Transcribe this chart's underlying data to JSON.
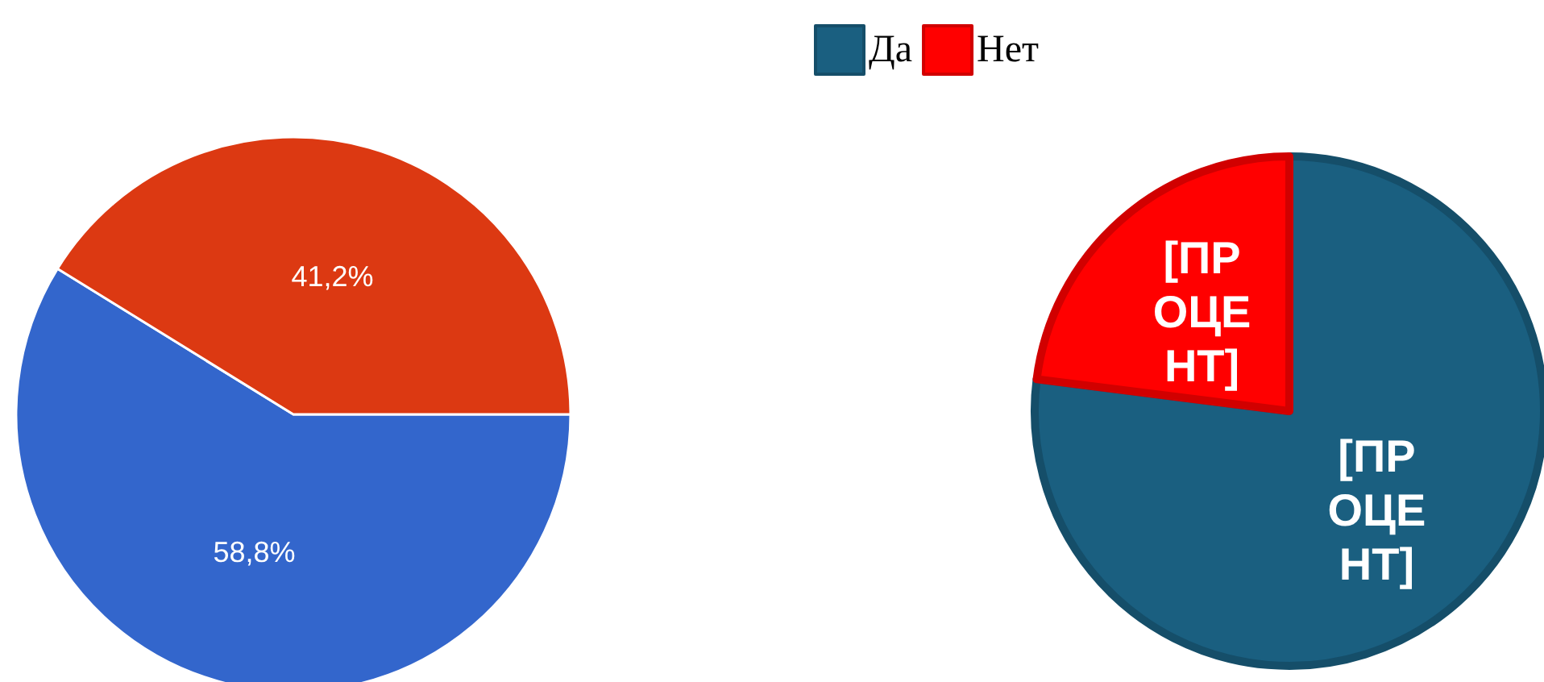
{
  "chart_data": [
    {
      "type": "pie",
      "categories": [
        null,
        null
      ],
      "values": [
        58.8,
        41.2
      ],
      "colors": [
        "#3366cc",
        "#dc3912"
      ],
      "value_labels": [
        "58,8%",
        "41,2%"
      ],
      "legend": false
    },
    {
      "type": "pie",
      "categories": [
        "Да",
        "Нет"
      ],
      "values": [
        77,
        23
      ],
      "colors": [
        "#1a5f80",
        "#ff0000"
      ],
      "value_labels": [
        "[ПРОЦЕНТ]",
        "[ПРОЦЕНТ]"
      ],
      "legend": "top"
    }
  ]
}
